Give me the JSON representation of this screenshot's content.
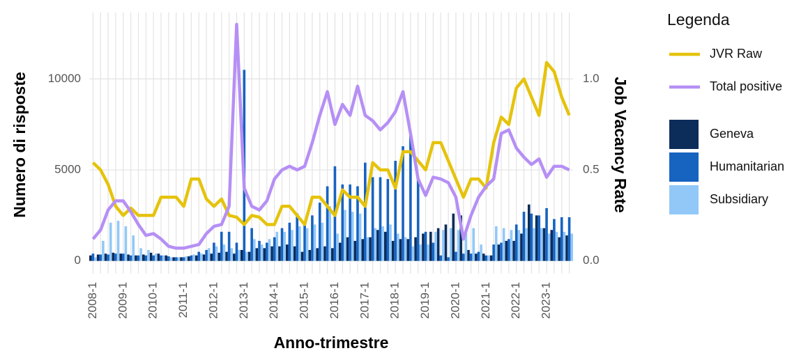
{
  "chart_data": {
    "type": "bar",
    "x_label": "Anno-trimestre",
    "y_label": "Numero di risposte",
    "y2_label": "Job Vacancy Rate",
    "legend_title": "Legenda",
    "legend": "right",
    "grid": true,
    "categories": [
      "2008-1",
      null,
      null,
      null,
      "2009-1",
      null,
      null,
      null,
      "2010-1",
      null,
      null,
      null,
      "2011-1",
      null,
      null,
      null,
      "2012-1",
      null,
      null,
      null,
      "2013-1",
      null,
      null,
      null,
      "2014-1",
      null,
      null,
      null,
      "2015-1",
      null,
      null,
      null,
      "2016-1",
      null,
      null,
      null,
      "2017-1",
      null,
      null,
      null,
      "2018-1",
      null,
      null,
      null,
      "2019-1",
      null,
      null,
      null,
      "2020-1",
      null,
      null,
      null,
      "2021-1",
      null,
      null,
      null,
      "2022-1",
      null,
      null,
      null,
      "2023-1",
      null,
      null,
      null
    ],
    "ylim": [
      -700,
      13650
    ],
    "yticks": [
      0,
      5000,
      10000
    ],
    "y2lim": [
      -0.07,
      1.365
    ],
    "y2ticks": [
      {
        "value": 0,
        "label": "0.0"
      },
      {
        "value": 0.5,
        "label": "0.5"
      },
      {
        "value": 1,
        "label": "1.0"
      }
    ],
    "series": [
      {
        "name": "JVR Raw",
        "type": "line",
        "axis": "y2",
        "color": "#e5c30c",
        "values": [
          0.54,
          0.5,
          0.42,
          0.3,
          0.25,
          0.29,
          0.25,
          0.25,
          0.25,
          0.35,
          0.35,
          0.35,
          0.3,
          0.45,
          0.45,
          0.34,
          0.3,
          0.34,
          0.25,
          0.24,
          0.2,
          0.25,
          0.24,
          0.2,
          0.2,
          0.3,
          0.3,
          0.25,
          0.2,
          0.35,
          0.35,
          0.3,
          0.25,
          0.39,
          0.35,
          0.35,
          0.3,
          0.54,
          0.5,
          0.5,
          0.4,
          0.6,
          0.6,
          0.55,
          0.5,
          0.65,
          0.65,
          0.55,
          0.45,
          0.35,
          0.45,
          0.45,
          0.4,
          0.65,
          0.79,
          0.75,
          0.95,
          1.0,
          0.9,
          0.8,
          1.09,
          1.04,
          0.9,
          0.8
        ]
      },
      {
        "name": "Total positive",
        "type": "line",
        "axis": "y2",
        "color": "#b68ff5",
        "values": [
          0.12,
          0.17,
          0.28,
          0.33,
          0.33,
          0.27,
          0.2,
          0.14,
          0.15,
          0.12,
          0.08,
          0.07,
          0.07,
          0.08,
          0.09,
          0.15,
          0.19,
          0.2,
          0.3,
          1.3,
          0.4,
          0.3,
          0.28,
          0.33,
          0.45,
          0.5,
          0.52,
          0.5,
          0.52,
          0.65,
          0.8,
          0.93,
          0.75,
          0.86,
          0.8,
          0.96,
          0.8,
          0.77,
          0.72,
          0.76,
          0.82,
          0.93,
          0.7,
          0.45,
          0.36,
          0.46,
          0.45,
          0.43,
          0.35,
          0.12,
          0.25,
          0.35,
          0.41,
          0.45,
          0.7,
          0.72,
          0.62,
          0.57,
          0.53,
          0.56,
          0.46,
          0.52,
          0.52,
          0.5
        ]
      },
      {
        "name": "Geneva",
        "type": "bar",
        "color": "#0c2c5a",
        "values": [
          300,
          350,
          400,
          450,
          400,
          350,
          300,
          350,
          450,
          400,
          300,
          200,
          200,
          250,
          300,
          350,
          400,
          450,
          500,
          400,
          600,
          500,
          700,
          700,
          800,
          800,
          900,
          800,
          500,
          600,
          700,
          800,
          700,
          1000,
          1300,
          1100,
          1200,
          1300,
          1700,
          1600,
          1100,
          1200,
          1200,
          1300,
          1500,
          1600,
          1800,
          2000,
          2600,
          2500,
          600,
          400,
          400,
          300,
          900,
          1100,
          1100,
          1500,
          3100,
          2500,
          1800,
          1700,
          1300,
          1400
        ]
      },
      {
        "name": "Humanitarian",
        "type": "bar",
        "color": "#1763c0",
        "values": [
          400,
          350,
          350,
          400,
          400,
          300,
          300,
          300,
          300,
          300,
          250,
          200,
          200,
          300,
          500,
          600,
          1000,
          1600,
          1600,
          1000,
          10500,
          1800,
          1100,
          1000,
          1300,
          1800,
          2100,
          2600,
          2100,
          2500,
          3200,
          4100,
          5200,
          4200,
          4200,
          4100,
          5400,
          4600,
          4600,
          4500,
          5500,
          6300,
          7000,
          4500,
          1600,
          1000,
          300,
          200,
          500,
          400,
          400,
          500,
          300,
          900,
          1000,
          1200,
          2000,
          2700,
          2600,
          2500,
          2900,
          2300,
          2400,
          2400
        ]
      },
      {
        "name": "Subsidiary",
        "type": "bar",
        "color": "#92c8f8",
        "values": [
          200,
          1100,
          2100,
          2200,
          1900,
          1400,
          700,
          600,
          400,
          300,
          200,
          200,
          250,
          350,
          400,
          700,
          800,
          900,
          700,
          600,
          500,
          1200,
          900,
          1200,
          1600,
          1600,
          1700,
          1900,
          1800,
          2000,
          2100,
          3000,
          1500,
          2800,
          2700,
          2600,
          1300,
          1800,
          1900,
          2000,
          1500,
          1300,
          800,
          900,
          900,
          1600,
          1700,
          1800,
          1700,
          1500,
          1800,
          900,
          300,
          1900,
          1800,
          1700,
          1700,
          1800,
          1800,
          1800,
          1500,
          1600,
          1600,
          1500
        ]
      }
    ]
  }
}
